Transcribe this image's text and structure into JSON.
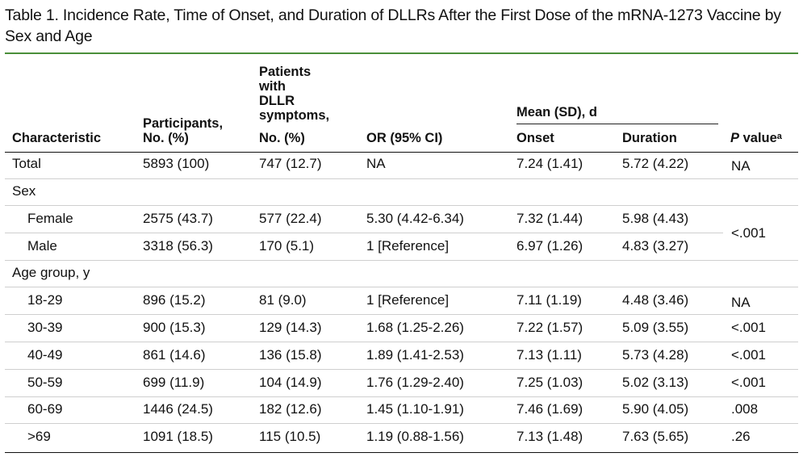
{
  "title": "Table 1. Incidence Rate, Time of Onset, and Duration of DLLRs After the First Dose of the mRNA-1273 Vaccine by Sex and Age",
  "header": {
    "characteristic": "Characteristic",
    "participants_l1": "Participants,",
    "participants_l2": "No. (%)",
    "patients_l1": "Patients",
    "patients_l2": "with",
    "patients_l3": "DLLR",
    "patients_l4": "symptoms,",
    "patients_l5": "No. (%)",
    "or": "OR (95% CI)",
    "mean_group": "Mean (SD), d",
    "onset": "Onset",
    "duration": "Duration",
    "pvalue_italic": "P",
    "pvalue_rest": " value",
    "pvalue_sup": "a"
  },
  "rows": [
    {
      "label": "Total",
      "participants": "5893 (100)",
      "patients": "747 (12.7)",
      "or": "NA",
      "onset": "7.24 (1.41)",
      "duration": "5.72 (4.22)",
      "p": "NA"
    },
    {
      "label": "Sex",
      "participants": "",
      "patients": "",
      "or": "",
      "onset": "",
      "duration": "",
      "p": ""
    },
    {
      "label": "Female",
      "participants": "2575 (43.7)",
      "patients": "577 (22.4)",
      "or": "5.30 (4.42-6.34)",
      "onset": "7.32 (1.44)",
      "duration": "5.98 (4.43)",
      "p": ""
    },
    {
      "label": "Male",
      "participants": "3318 (56.3)",
      "patients": "170 (5.1)",
      "or": "1 [Reference]",
      "onset": "6.97 (1.26)",
      "duration": "4.83 (3.27)",
      "p": ""
    },
    {
      "label": "Age group, y",
      "participants": "",
      "patients": "",
      "or": "",
      "onset": "",
      "duration": "",
      "p": ""
    },
    {
      "label": "18-29",
      "participants": "896 (15.2)",
      "patients": "81 (9.0)",
      "or": "1 [Reference]",
      "onset": "7.11 (1.19)",
      "duration": "4.48 (3.46)",
      "p": "NA"
    },
    {
      "label": "30-39",
      "participants": "900 (15.3)",
      "patients": "129 (14.3)",
      "or": "1.68 (1.25-2.26)",
      "onset": "7.22 (1.57)",
      "duration": "5.09 (3.55)",
      "p": "<.001"
    },
    {
      "label": "40-49",
      "participants": "861 (14.6)",
      "patients": "136 (15.8)",
      "or": "1.89 (1.41-2.53)",
      "onset": "7.13 (1.11)",
      "duration": "5.73 (4.28)",
      "p": "<.001"
    },
    {
      "label": "50-59",
      "participants": "699 (11.9)",
      "patients": "104 (14.9)",
      "or": "1.76 (1.29-2.40)",
      "onset": "7.25 (1.03)",
      "duration": "5.02 (3.13)",
      "p": "<.001"
    },
    {
      "label": "60-69",
      "participants": "1446 (24.5)",
      "patients": "182 (12.6)",
      "or": "1.45 (1.10-1.91)",
      "onset": "7.46 (1.69)",
      "duration": "5.90 (4.05)",
      "p": ".008"
    },
    {
      "label": ">69",
      "participants": "1091 (18.5)",
      "patients": "115 (10.5)",
      "or": "1.19 (0.88-1.56)",
      "onset": "7.13 (1.48)",
      "duration": "7.63 (5.65)",
      "p": ".26"
    }
  ],
  "sex_pvalue": "<.001"
}
